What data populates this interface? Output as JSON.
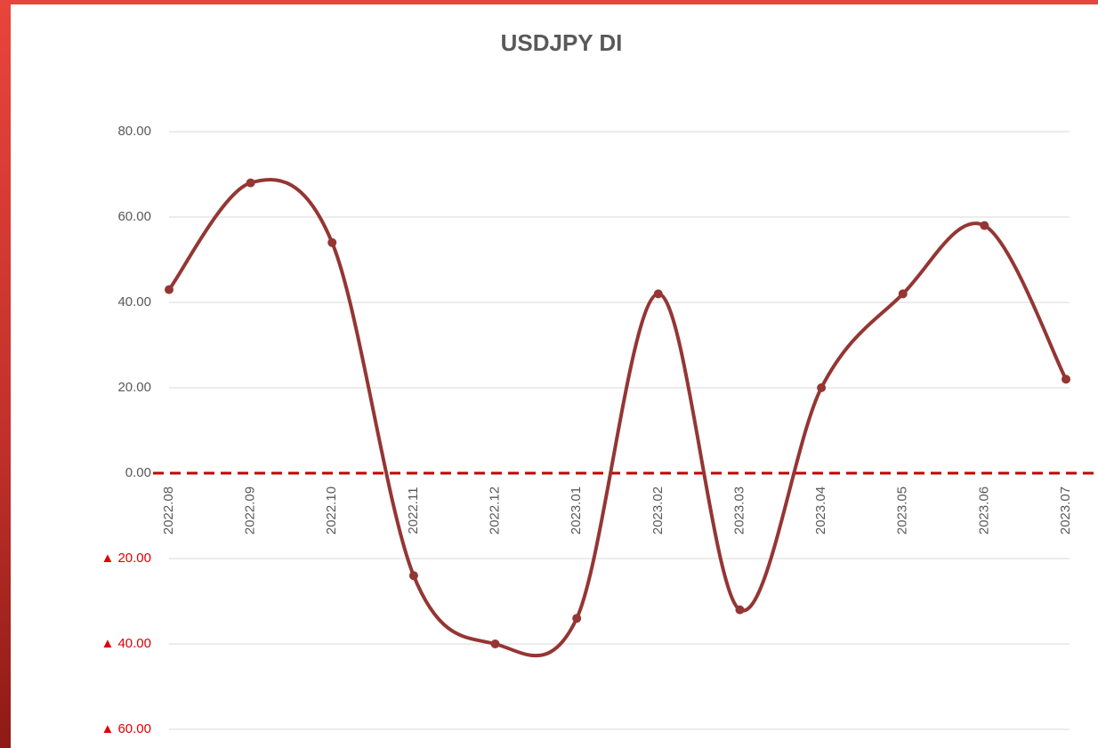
{
  "chart_data": {
    "type": "line",
    "title": "USDJPY DI",
    "categories": [
      "2022.08",
      "2022.09",
      "2022.10",
      "2022.11",
      "2022.12",
      "2023.01",
      "2023.02",
      "2023.03",
      "2023.04",
      "2023.05",
      "2023.06",
      "2023.07"
    ],
    "series": [
      {
        "name": "USDJPY DI",
        "color": "#943634",
        "values": [
          43,
          68,
          54,
          -24,
          -40,
          -34,
          42,
          -32,
          20,
          42,
          58,
          22
        ]
      }
    ],
    "ylim": [
      -60,
      80
    ],
    "yticks": [
      {
        "value": 80,
        "label": "80.00"
      },
      {
        "value": 60,
        "label": "60.00"
      },
      {
        "value": 40,
        "label": "40.00"
      },
      {
        "value": 20,
        "label": "20.00"
      },
      {
        "value": 0,
        "label": "0.00"
      },
      {
        "value": -20,
        "label": "▲ 20.00"
      },
      {
        "value": -40,
        "label": "▲ 40.00"
      },
      {
        "value": -60,
        "label": "▲ 60.00"
      }
    ],
    "grid": true,
    "smooth": true,
    "zero_line_color": "#c00000"
  }
}
